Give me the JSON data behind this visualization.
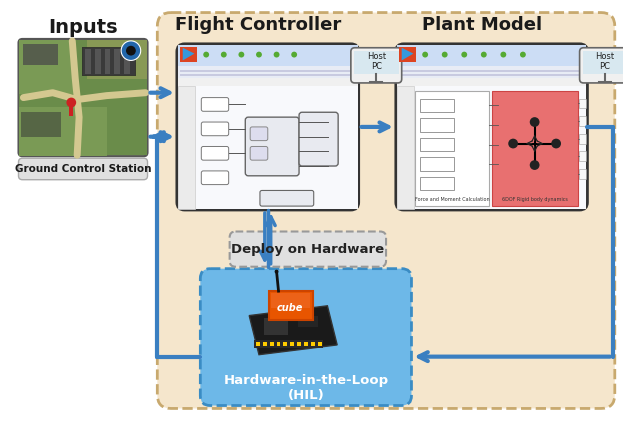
{
  "fig_bg": "#ffffff",
  "main_box_bg": "#f5e6cc",
  "main_box_edge": "#c8a96e",
  "hil_box_bg": "#6db8e8",
  "hil_box_edge": "#3a8cc4",
  "deploy_box_bg": "#e0e0e0",
  "deploy_box_edge": "#999999",
  "screen_bg": "#ffffff",
  "arrow_color": "#3a7fc1",
  "text_dark": "#1a1a1a",
  "text_blue": "#1a5fa8",
  "labels": {
    "inputs": "Inputs",
    "gcs": "Ground Control Station",
    "flight_ctrl": "Flight Controller",
    "plant_model": "Plant Model",
    "host_pc": "Host\nPC",
    "deploy": "Deploy on Hardware",
    "hil": "Hardware-in-the-Loop\n(HIL)"
  },
  "sat_colors": {
    "base": "#6a8c50",
    "road": "#c8b87a",
    "build1": "#4a4a4a",
    "build2": "#606060",
    "green_dark": "#557040",
    "green_light": "#88a860"
  },
  "simulink_red": "#cc3322",
  "plant_pink": "#e87070",
  "fc_screen_bg": "#f2f5fa",
  "pm_screen_bg": "#f2f5fa"
}
